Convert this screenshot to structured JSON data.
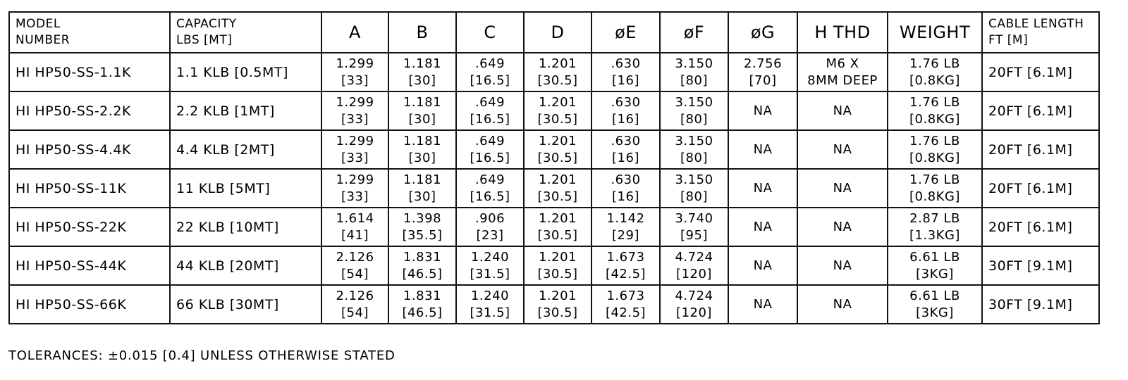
{
  "headers": [
    "MODEL\nNUMBER",
    "CAPACITY\nLBS [MT]",
    "A",
    "B",
    "C",
    "D",
    "øE",
    "øF",
    "øG",
    "H THD",
    "WEIGHT",
    "CABLE LENGTH\nFT [M]"
  ],
  "rows": [
    [
      "HI HP50-SS-1.1K",
      "1.1 KLB [0.5MT]",
      "1.299\n[33]",
      "1.181\n[30]",
      ".649\n[16.5]",
      "1.201\n[30.5]",
      ".630\n[16]",
      "3.150\n[80]",
      "2.756\n[70]",
      "M6 X\n8MM DEEP",
      "1.76 LB\n[0.8KG]",
      "20FT [6.1M]"
    ],
    [
      "HI HP50-SS-2.2K",
      "2.2 KLB [1MT]",
      "1.299\n[33]",
      "1.181\n[30]",
      ".649\n[16.5]",
      "1.201\n[30.5]",
      ".630\n[16]",
      "3.150\n[80]",
      "NA",
      "NA",
      "1.76 LB\n[0.8KG]",
      "20FT [6.1M]"
    ],
    [
      "HI HP50-SS-4.4K",
      "4.4 KLB [2MT]",
      "1.299\n[33]",
      "1.181\n[30]",
      ".649\n[16.5]",
      "1.201\n[30.5]",
      ".630\n[16]",
      "3.150\n[80]",
      "NA",
      "NA",
      "1.76 LB\n[0.8KG]",
      "20FT [6.1M]"
    ],
    [
      "HI HP50-SS-11K",
      "11 KLB [5MT]",
      "1.299\n[33]",
      "1.181\n[30]",
      ".649\n[16.5]",
      "1.201\n[30.5]",
      ".630\n[16]",
      "3.150\n[80]",
      "NA",
      "NA",
      "1.76 LB\n[0.8KG]",
      "20FT [6.1M]"
    ],
    [
      "HI HP50-SS-22K",
      "22 KLB [10MT]",
      "1.614\n[41]",
      "1.398\n[35.5]",
      ".906\n[23]",
      "1.201\n[30.5]",
      "1.142\n[29]",
      "3.740\n[95]",
      "NA",
      "NA",
      "2.87 LB\n[1.3KG]",
      "20FT [6.1M]"
    ],
    [
      "HI HP50-SS-44K",
      "44 KLB [20MT]",
      "2.126\n[54]",
      "1.831\n[46.5]",
      "1.240\n[31.5]",
      "1.201\n[30.5]",
      "1.673\n[42.5]",
      "4.724\n[120]",
      "NA",
      "NA",
      "6.61 LB\n[3KG]",
      "30FT [9.1M]"
    ],
    [
      "HI HP50-SS-66K",
      "66 KLB [30MT]",
      "2.126\n[54]",
      "1.831\n[46.5]",
      "1.240\n[31.5]",
      "1.201\n[30.5]",
      "1.673\n[42.5]",
      "4.724\n[120]",
      "NA",
      "NA",
      "6.61 LB\n[3KG]",
      "30FT [9.1M]"
    ]
  ],
  "tolerance_note": "TOLERANCES: ±0.015 [0.4] UNLESS OTHERWISE STATED"
}
